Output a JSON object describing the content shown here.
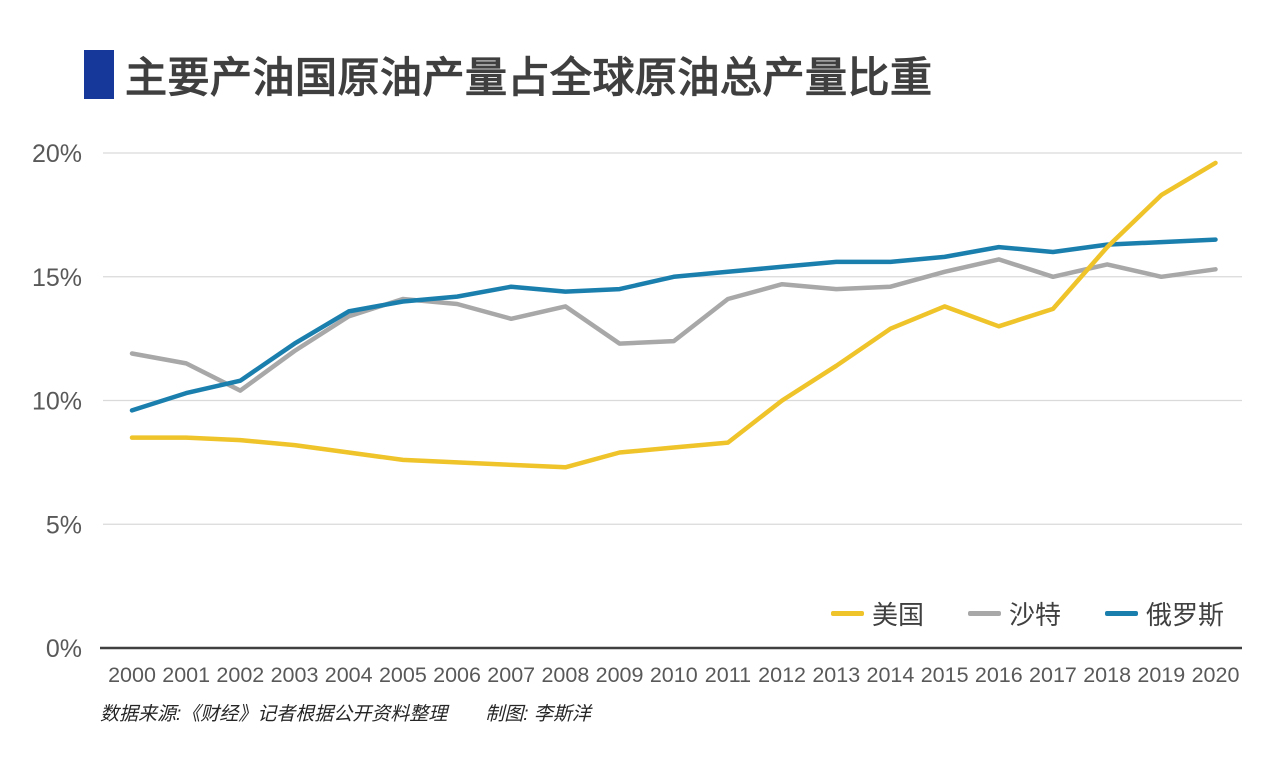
{
  "chart_data": {
    "type": "line",
    "title": "主要产油国原油产量占全球原油总产量比重",
    "x": [
      2000,
      2001,
      2002,
      2003,
      2004,
      2005,
      2006,
      2007,
      2008,
      2009,
      2010,
      2011,
      2012,
      2013,
      2014,
      2015,
      2016,
      2017,
      2018,
      2019,
      2020
    ],
    "series": [
      {
        "name": "美国",
        "color": "#EFC32A",
        "values": [
          8.5,
          8.5,
          8.4,
          8.2,
          7.9,
          7.6,
          7.5,
          7.4,
          7.3,
          7.9,
          8.1,
          8.3,
          10.0,
          11.4,
          12.9,
          13.8,
          13.0,
          13.7,
          16.2,
          18.3,
          19.6
        ]
      },
      {
        "name": "沙特",
        "color": "#A8A8A8",
        "values": [
          11.9,
          11.5,
          10.4,
          12.0,
          13.4,
          14.1,
          13.9,
          13.3,
          13.8,
          12.3,
          12.4,
          14.1,
          14.7,
          14.5,
          14.6,
          15.2,
          15.7,
          15.0,
          15.5,
          15.0,
          15.3
        ]
      },
      {
        "name": "俄罗斯",
        "color": "#1B7FAE",
        "values": [
          9.6,
          10.3,
          10.8,
          12.3,
          13.6,
          14.0,
          14.2,
          14.6,
          14.4,
          14.5,
          15.0,
          15.2,
          15.4,
          15.6,
          15.6,
          15.8,
          16.2,
          16.0,
          16.3,
          16.4,
          16.5
        ]
      }
    ],
    "ylim": [
      0,
      20
    ],
    "ytick_labels": [
      "0%",
      "5%",
      "10%",
      "15%",
      "20%"
    ],
    "ytick_values": [
      0,
      5,
      10,
      15,
      20
    ],
    "grid": true,
    "legend_position": "bottom-right-inside"
  },
  "footer": {
    "source": "数据来源:《财经》记者根据公开资料整理",
    "credit": "制图: 李斯洋"
  },
  "colors": {
    "title_bar": "#16389B",
    "grid_line": "#DADADA",
    "axis_line": "#404040",
    "tick_text": "#595959"
  }
}
